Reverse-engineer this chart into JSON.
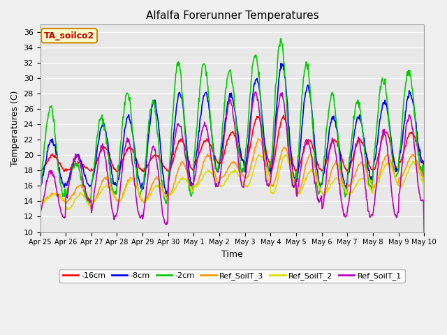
{
  "title": "Alfalfa Forerunner Temperatures",
  "xlabel": "Time",
  "ylabel": "Temperatures (C)",
  "ylim": [
    10,
    37
  ],
  "yticks": [
    10,
    12,
    14,
    16,
    18,
    20,
    22,
    24,
    26,
    28,
    30,
    32,
    34,
    36
  ],
  "annotation": "TA_soilco2",
  "fig_bg": "#f0f0f0",
  "ax_bg": "#e8e8e8",
  "grid_color": "#ffffff",
  "line_colors": {
    "m16": "#ff0000",
    "m8": "#0000ee",
    "m2": "#00cc00",
    "ref3": "#ff9900",
    "ref2": "#dddd00",
    "ref1": "#bb00bb"
  },
  "legend_labels": [
    "-16cm",
    "-8cm",
    "-2cm",
    "Ref_SoilT_3",
    "Ref_SoilT_2",
    "Ref_SoilT_1"
  ],
  "xtick_labels": [
    "Apr 25",
    "Apr 26",
    "Apr 27",
    "Apr 28",
    "Apr 29",
    "Apr 30",
    "May 1",
    "May 2",
    "May 3",
    "May 4",
    "May 5",
    "May 6",
    "May 7",
    "May 8",
    "May 9",
    "May 10"
  ],
  "n_days": 15,
  "ppd": 48
}
